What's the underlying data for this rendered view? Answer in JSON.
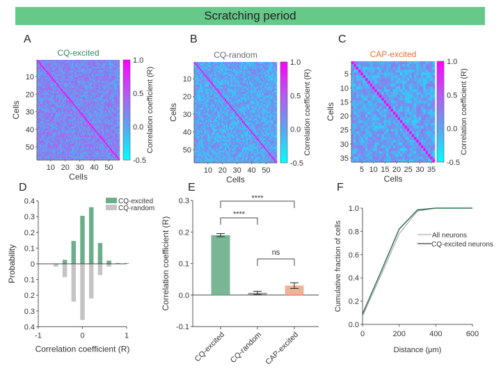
{
  "banner": {
    "title": "Scratching period"
  },
  "panels": {
    "A": "A",
    "B": "B",
    "C": "C",
    "D": "D",
    "E": "E",
    "F": "F"
  },
  "colors": {
    "banner": "#66c98a",
    "cq_excited": "#6aae8a",
    "cq_random": "#c4c4c4",
    "cap_excited": "#f0a282",
    "cq_excited_title": "#2e8b57",
    "cq_random_title": "#666666",
    "cap_excited_title": "#e0703c",
    "line_all": "#999999",
    "line_cq": "#2e6e50",
    "cmap_low": "#00ffff",
    "cmap_high": "#ff00ff"
  },
  "chart_data": [
    {
      "id": "A",
      "type": "heatmap",
      "title": "CQ-excited",
      "xlabel": "Cells",
      "ylabel": "Cells",
      "n_cells": 57,
      "xticks": [
        10,
        20,
        30,
        40,
        50
      ],
      "yticks": [
        10,
        20,
        30,
        40,
        50
      ],
      "colorbar": {
        "label": "Correlation coefficient (R)",
        "range": [
          -0.5,
          1.0
        ],
        "ticks": [
          "1.0",
          "0.5",
          "0.0",
          "-0.5"
        ]
      },
      "diagonal_value": 1.0,
      "offdiag_mean": 0.19
    },
    {
      "id": "B",
      "type": "heatmap",
      "title": "CQ-random",
      "xlabel": "Cells",
      "ylabel": "Cells",
      "n_cells": 57,
      "xticks": [
        10,
        20,
        30,
        40,
        50
      ],
      "yticks": [
        10,
        20,
        30,
        40,
        50
      ],
      "colorbar": {
        "label": "Correlation coefficient (R)",
        "range": [
          -0.5,
          1.0
        ],
        "ticks": [
          "1.0",
          "0.5",
          "0.0",
          "-0.5"
        ]
      },
      "diagonal_value": 1.0,
      "offdiag_mean": 0.01
    },
    {
      "id": "C",
      "type": "heatmap",
      "title": "CAP-excited",
      "xlabel": "Cells",
      "ylabel": "Cells",
      "n_cells": 36,
      "xticks": [
        5,
        10,
        15,
        20,
        25,
        30,
        35
      ],
      "yticks": [
        5,
        10,
        15,
        20,
        25,
        30,
        35
      ],
      "colorbar": {
        "label": "Correlation coefficient (R)",
        "range": [
          -0.5,
          1.0
        ],
        "ticks": [
          "1.0",
          "0.5",
          "0.0",
          "-0.5"
        ]
      },
      "diagonal_value": 1.0,
      "offdiag_mean": 0.03
    },
    {
      "id": "D",
      "type": "bar",
      "title": "",
      "xlabel": "Correlation coefficient (R)",
      "ylabel": "Probability",
      "xlim": [
        -1,
        1
      ],
      "ylim": [
        -0.4,
        0.4
      ],
      "xticks": [
        "-1",
        "0",
        "1"
      ],
      "yticks": [
        "0.4",
        "0.3",
        "0.2",
        "0.1",
        "0",
        "0.1",
        "0.2",
        "0.3",
        "0.4"
      ],
      "legend": {
        "position": "top-right",
        "entries": [
          "CQ-excited",
          "CQ-random"
        ]
      },
      "x": [
        -0.8,
        -0.6,
        -0.4,
        -0.2,
        0.0,
        0.2,
        0.4,
        0.6,
        0.8,
        1.0
      ],
      "series": [
        {
          "name": "CQ-excited",
          "direction": "up",
          "values": [
            0.0,
            0.0,
            0.025,
            0.145,
            0.305,
            0.36,
            0.132,
            0.02,
            0.005,
            0.005
          ]
        },
        {
          "name": "CQ-random",
          "direction": "down",
          "values": [
            0.0,
            0.018,
            0.085,
            0.24,
            0.357,
            0.22,
            0.072,
            0.018,
            0.0,
            0.0
          ]
        }
      ]
    },
    {
      "id": "E",
      "type": "bar",
      "title": "",
      "xlabel": "",
      "ylabel": "Correlation coefficient (R)",
      "ylim": [
        -0.1,
        0.3
      ],
      "yticks": [
        "0.3",
        "0.2",
        "0.1",
        "0.0",
        "-0.1"
      ],
      "categories": [
        "CQ-excited",
        "CQ-random",
        "CAP-excited"
      ],
      "values": [
        0.19,
        0.007,
        0.03
      ],
      "errors": [
        0.005,
        0.005,
        0.009
      ],
      "significance": [
        {
          "from": "CQ-excited",
          "to": "CQ-random",
          "label": "****"
        },
        {
          "from": "CQ-excited",
          "to": "CAP-excited",
          "label": "****"
        },
        {
          "from": "CQ-random",
          "to": "CAP-excited",
          "label": "ns"
        }
      ]
    },
    {
      "id": "F",
      "type": "line",
      "title": "",
      "xlabel": "Distance (μm)",
      "ylabel": "Cumulative fraction of cells",
      "xlim": [
        0,
        600
      ],
      "ylim": [
        0,
        1.0
      ],
      "xticks": [
        "0",
        "200",
        "400",
        "600"
      ],
      "yticks": [
        "1.0",
        "0.8",
        "0.6",
        "0.4",
        "0.2",
        "0.0"
      ],
      "legend": {
        "position": "center-right",
        "entries": [
          "All neurons",
          "CQ-excited neurons"
        ]
      },
      "x": [
        0,
        100,
        200,
        300,
        400,
        500,
        600
      ],
      "series": [
        {
          "name": "All neurons",
          "values": [
            0.07,
            0.42,
            0.78,
            0.975,
            1.0,
            1.0,
            1.0
          ]
        },
        {
          "name": "CQ-excited neurons",
          "values": [
            0.09,
            0.45,
            0.82,
            0.985,
            1.0,
            1.0,
            1.0
          ]
        }
      ]
    }
  ]
}
